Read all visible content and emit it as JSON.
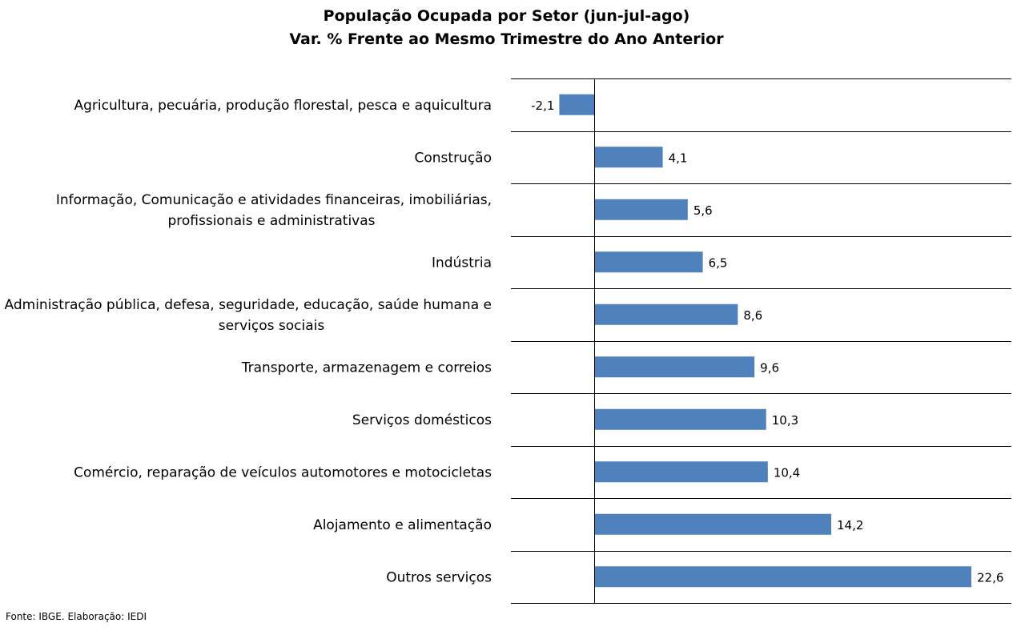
{
  "chart_data": {
    "type": "bar",
    "orientation": "horizontal",
    "title": "População Ocupada por Setor (jun-jul-ago)",
    "subtitle": "Var. % Frente ao Mesmo Trimestre do Ano Anterior",
    "categories": [
      [
        "Agricultura, pecuária, produção florestal, pesca e aquicultura"
      ],
      [
        "Construção"
      ],
      [
        "Informação, Comunicação e atividades financeiras, imobiliárias,",
        "profissionais e administrativas"
      ],
      [
        "Indústria"
      ],
      [
        "Administração pública, defesa, seguridade, educação, saúde humana e",
        "serviços sociais"
      ],
      [
        "Transporte, armazenagem e correios"
      ],
      [
        "Serviços domésticos"
      ],
      [
        "Comércio, reparação de veículos automotores e motocicletas"
      ],
      [
        "Alojamento e alimentação"
      ],
      [
        "Outros serviços"
      ]
    ],
    "values": [
      -2.1,
      4.1,
      5.6,
      6.5,
      8.6,
      9.6,
      10.3,
      10.4,
      14.2,
      22.6
    ],
    "value_labels": [
      "-2,1",
      "4,1",
      "5,6",
      "6,5",
      "8,6",
      "9,6",
      "10,3",
      "10,4",
      "14,2",
      "22,6"
    ],
    "xlim": [
      -5.0,
      25.0
    ],
    "grid": true,
    "bar_color": "#4F81BD",
    "grid_color": "#000000"
  },
  "footer": {
    "source": "Fonte: IBGE. Elaboração: IEDI"
  }
}
